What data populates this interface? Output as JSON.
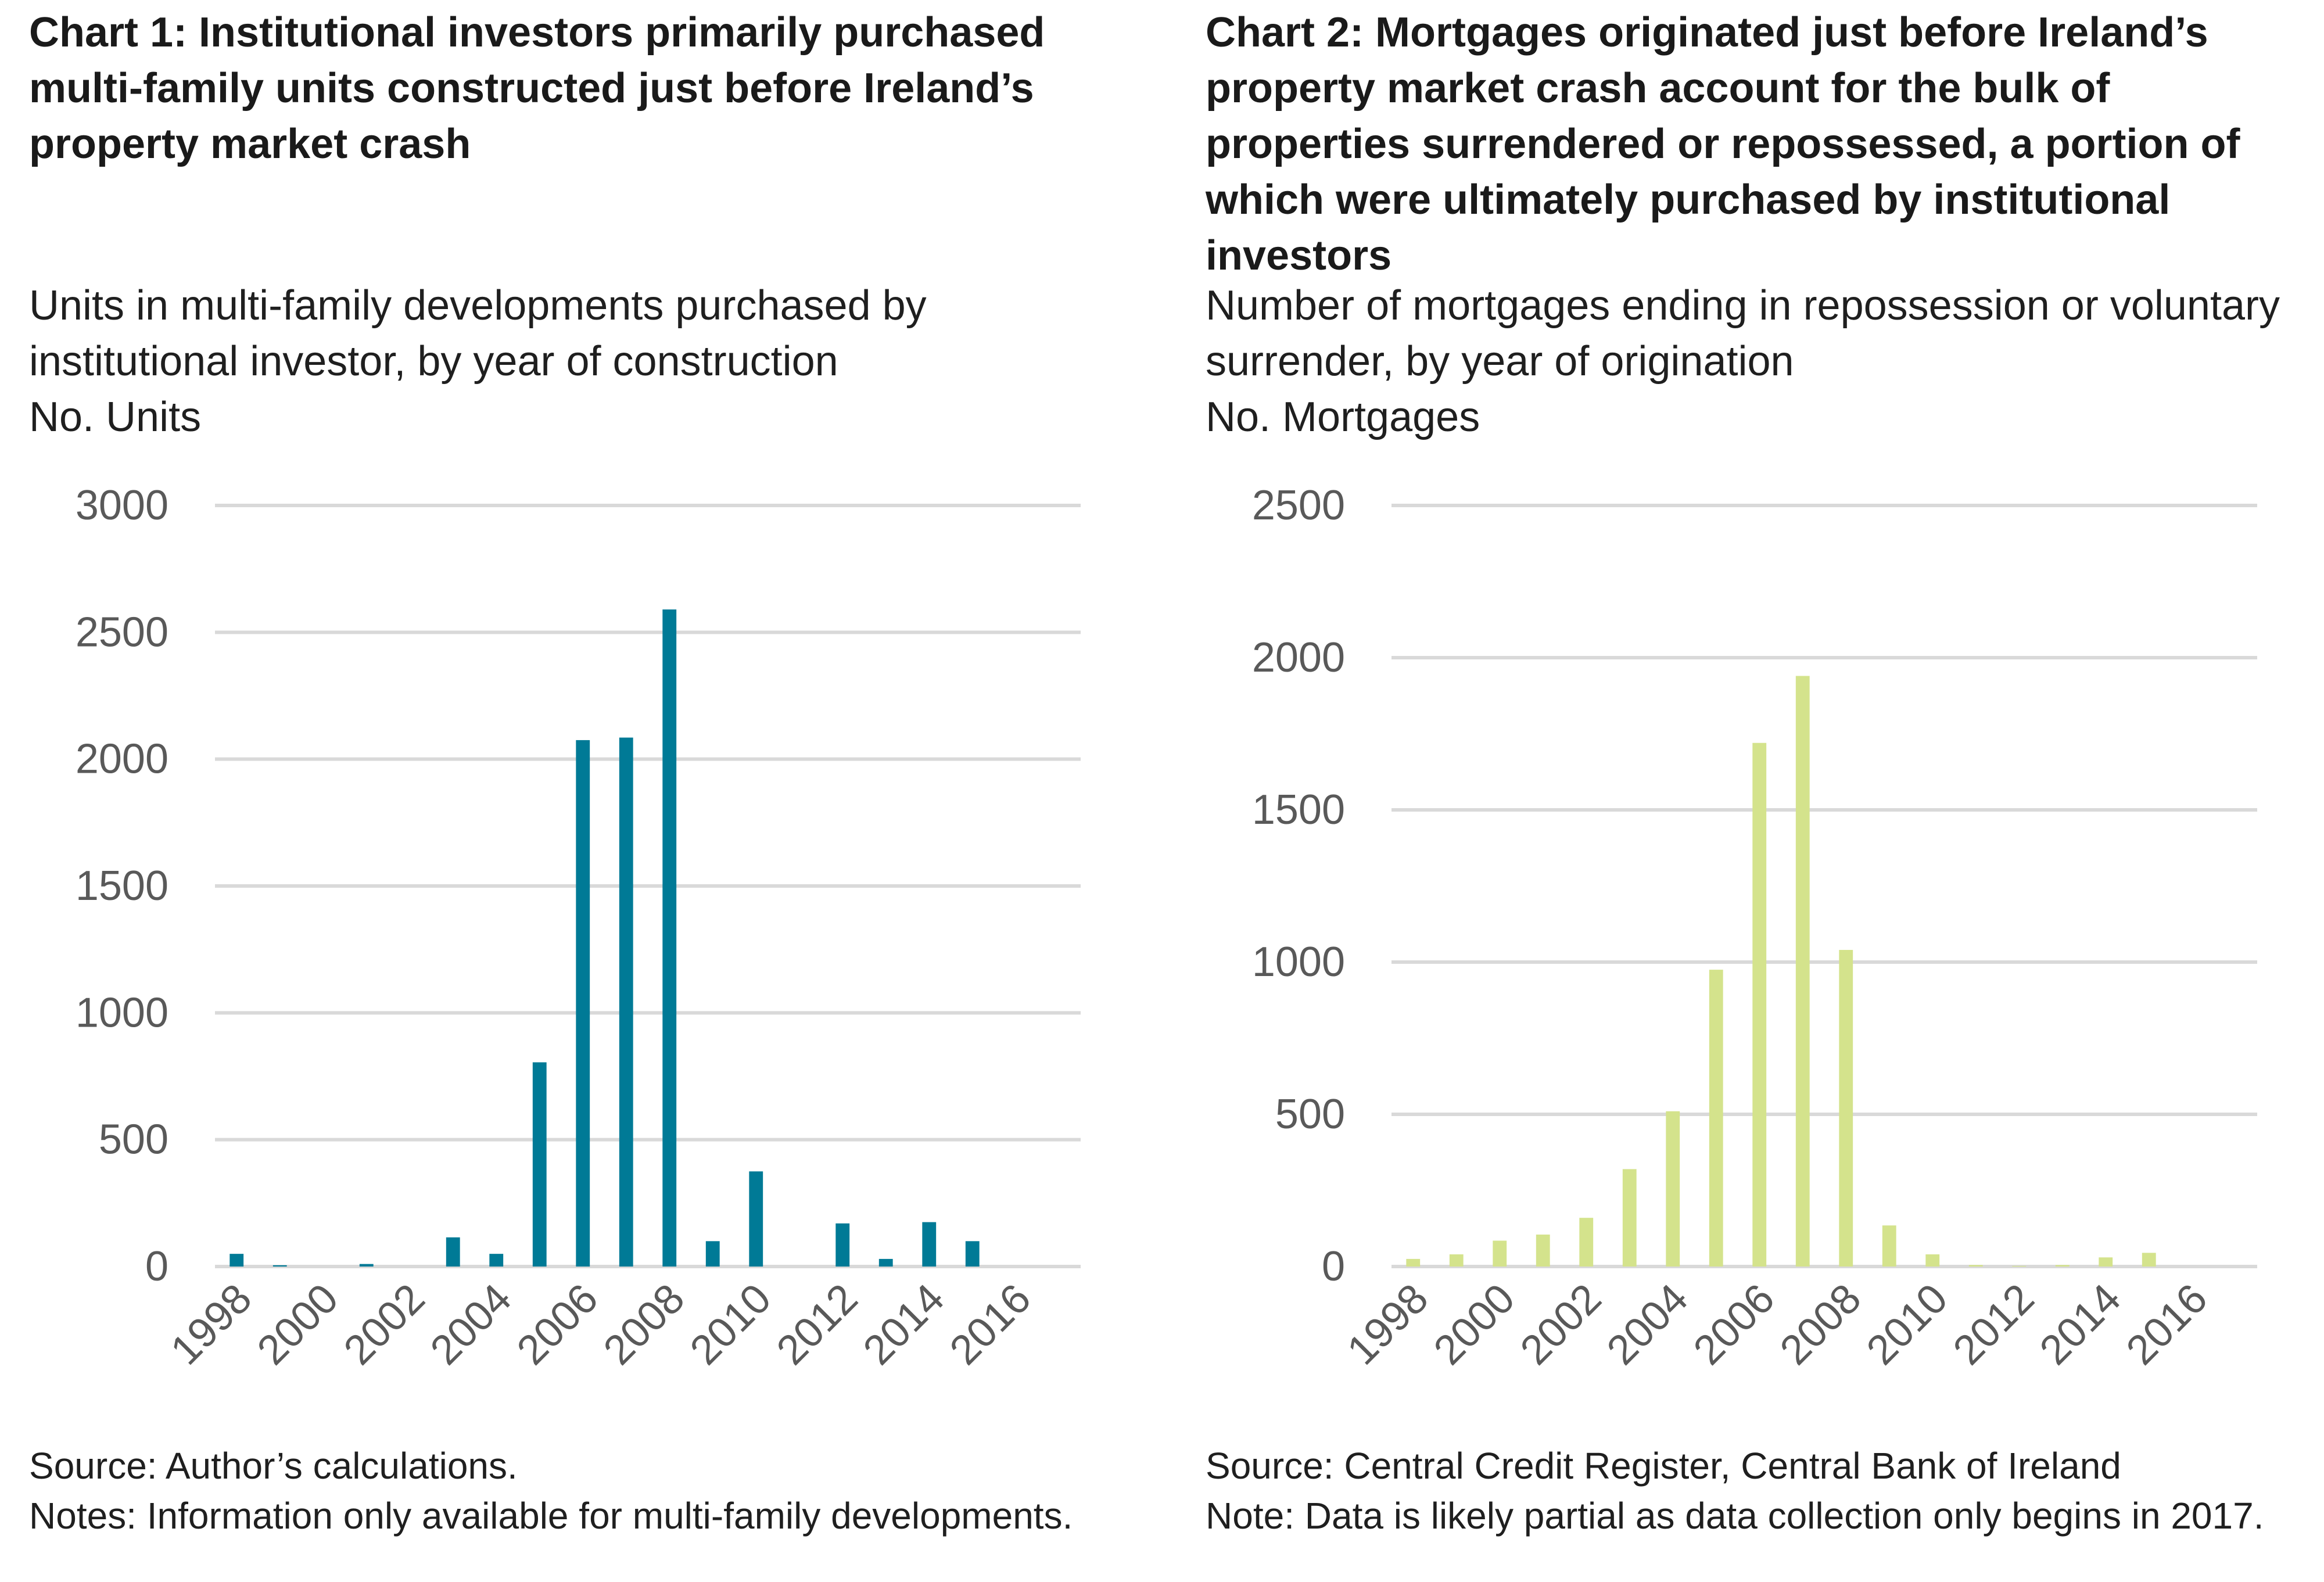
{
  "chart_data": [
    {
      "type": "bar",
      "title": "Chart 1: Institutional investors primarily purchased multi-family units constructed just before Ireland’s property market crash",
      "subtitle": "Units in multi-family developments purchased by institutional investor, by year of construction",
      "ylabel": "No. Units",
      "categories": [
        1998,
        1999,
        2000,
        2001,
        2002,
        2003,
        2004,
        2005,
        2006,
        2007,
        2008,
        2009,
        2010,
        2011,
        2012,
        2013,
        2014,
        2015,
        2016,
        2017
      ],
      "x_tick_labels": [
        "1998",
        "2000",
        "2002",
        "2004",
        "2006",
        "2008",
        "2010",
        "2012",
        "2014",
        "2016"
      ],
      "values": [
        50,
        5,
        0,
        10,
        0,
        115,
        50,
        805,
        2075,
        2085,
        2590,
        100,
        375,
        0,
        170,
        30,
        175,
        100,
        0,
        0
      ],
      "ylim": [
        0,
        3000
      ],
      "y_ticks": [
        "0",
        "500",
        "1000",
        "1500",
        "2000",
        "2500",
        "3000"
      ],
      "color": "#007a96",
      "grid": true,
      "source": "Source: Author’s calculations.",
      "note": "Notes: Information only available for multi-family developments."
    },
    {
      "type": "bar",
      "title": "Chart 2: Mortgages originated just before Ireland’s property market crash account for the bulk of properties surrendered or repossessed, a portion of which were ultimately purchased by institutional investors",
      "subtitle": "Number of mortgages ending in repossession or voluntary surrender, by year of origination",
      "ylabel": "No. Mortgages",
      "categories": [
        1998,
        1999,
        2000,
        2001,
        2002,
        2003,
        2004,
        2005,
        2006,
        2007,
        2008,
        2009,
        2010,
        2011,
        2012,
        2013,
        2014,
        2015,
        2016,
        2017
      ],
      "x_tick_labels": [
        "1998",
        "2000",
        "2002",
        "2004",
        "2006",
        "2008",
        "2010",
        "2012",
        "2014",
        "2016"
      ],
      "values": [
        25,
        40,
        85,
        105,
        160,
        320,
        510,
        975,
        1720,
        1940,
        1040,
        135,
        40,
        5,
        2,
        5,
        30,
        45,
        0,
        0
      ],
      "ylim": [
        0,
        2500
      ],
      "y_ticks": [
        "0",
        "500",
        "1000",
        "1500",
        "2000",
        "2500"
      ],
      "color": "#d4e38c",
      "grid": true,
      "source": "Source: Central Credit Register, Central Bank of Ireland",
      "note": "Note: Data is likely partial as data collection only begins in 2017."
    }
  ]
}
